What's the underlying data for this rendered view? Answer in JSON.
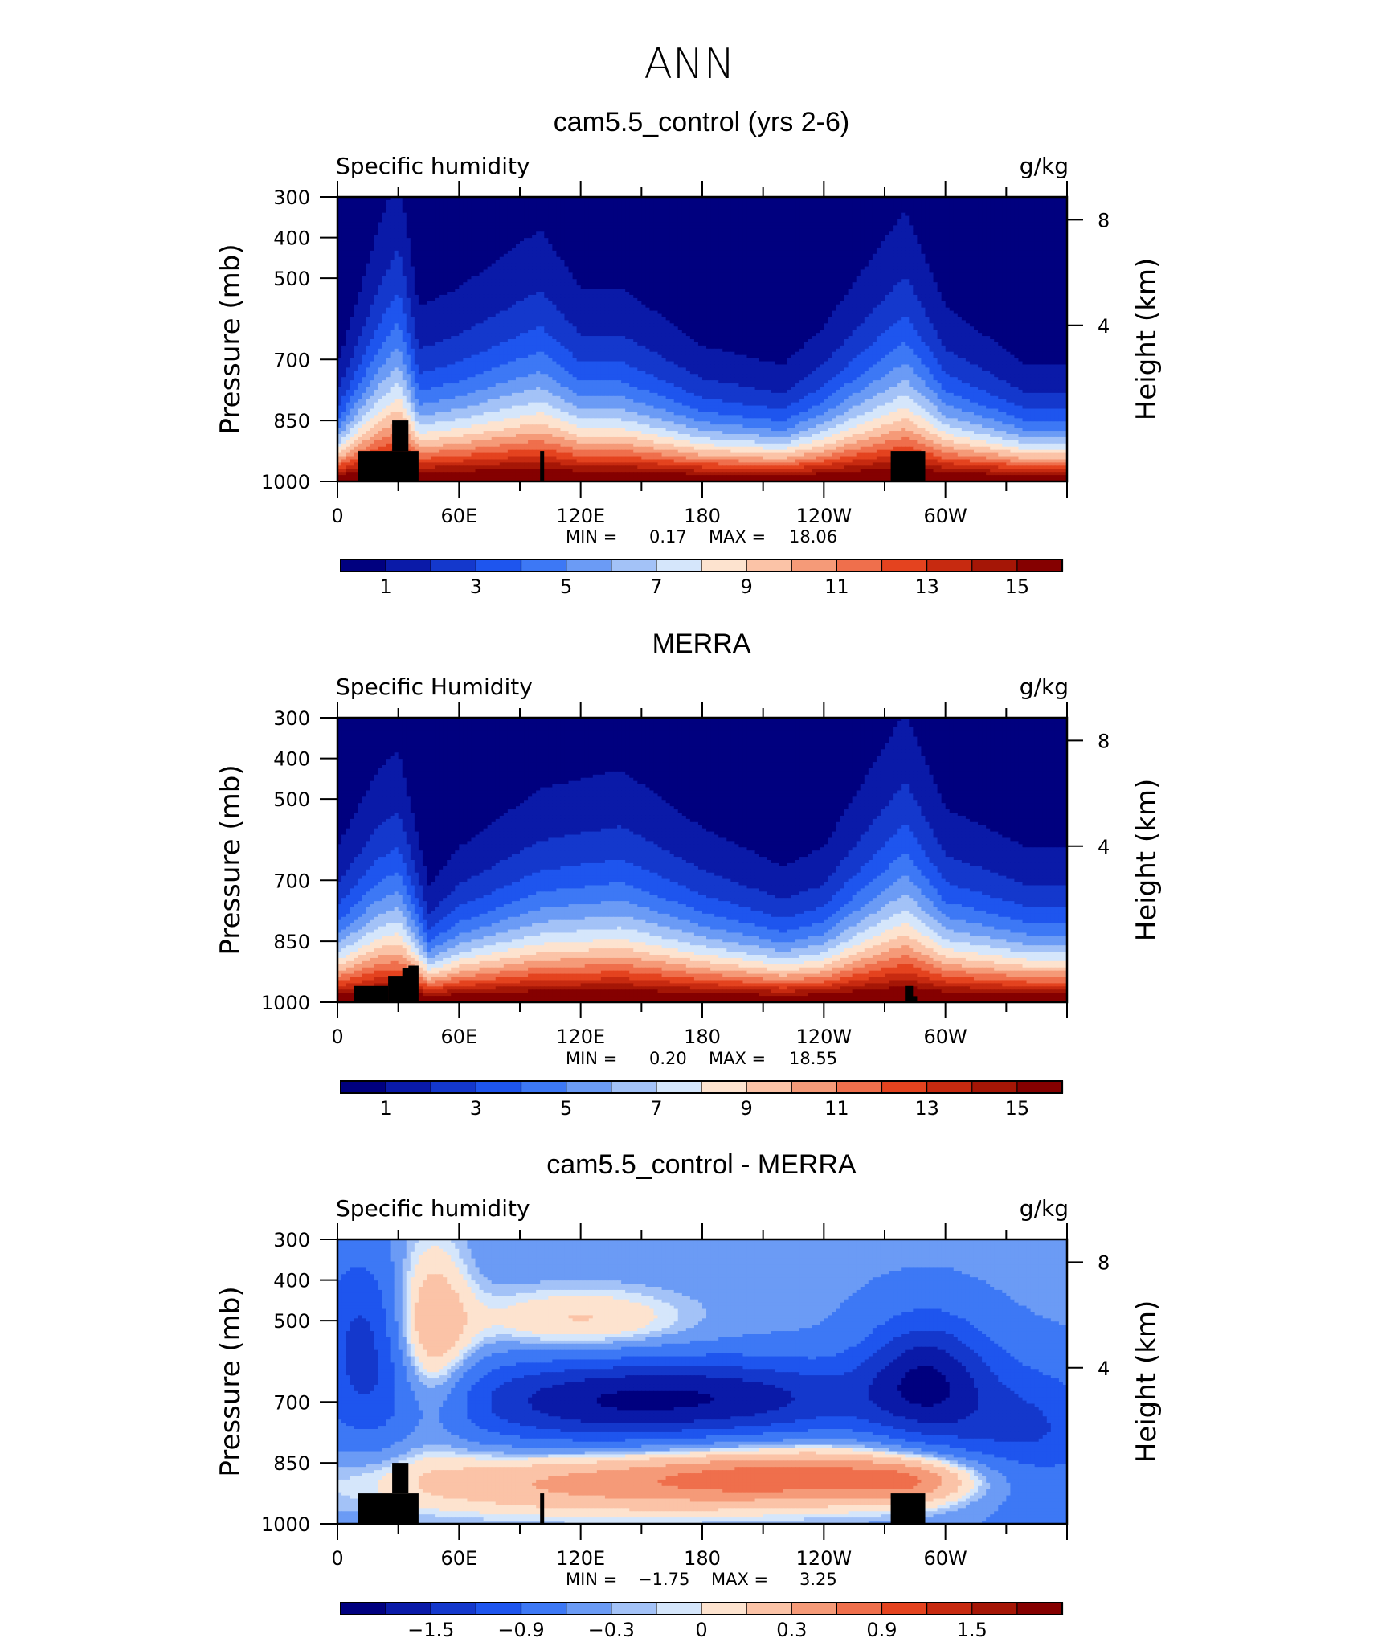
{
  "figure": {
    "title": "ANN",
    "colors": [
      "#00007f",
      "#0a1aa8",
      "#1438cc",
      "#1e55ee",
      "#3d78f5",
      "#6b9bf5",
      "#a3c2f7",
      "#d5e6fb",
      "#fde3cf",
      "#fbc3a7",
      "#f59a78",
      "#ef6f4c",
      "#e4431f",
      "#c72a10",
      "#a51606",
      "#850000"
    ]
  },
  "chart_data": [
    {
      "type": "heatmap",
      "title": "cam5.5_control (yrs 2-6)",
      "left_label": "Specific humidity",
      "right_label": "g/kg",
      "ylabel": "Pressure (mb)",
      "ylabel_right": "Height (km)",
      "yticks": [
        "300",
        "400",
        "500",
        "700",
        "850",
        "1000"
      ],
      "yticks_right": [
        "8",
        "4"
      ],
      "xticks": [
        "0",
        "60E",
        "120E",
        "180",
        "120W",
        "60W"
      ],
      "stats": {
        "min_label": "MIN =",
        "min": "0.17",
        "max_label": "MAX =",
        "max": "18.06"
      },
      "colorbar": {
        "labels": [
          "1",
          "3",
          "5",
          "7",
          "9",
          "11",
          "13",
          "15"
        ]
      },
      "field": {
        "ranges": [
          0,
          18.06
        ],
        "moist_dome": [
          [
            0,
            0.6
          ],
          [
            20,
            1.3
          ],
          [
            30,
            1.6
          ],
          [
            40,
            0.9
          ],
          [
            60,
            1.0
          ],
          [
            100,
            1.3
          ],
          [
            120,
            1.0
          ],
          [
            140,
            1.0
          ],
          [
            180,
            0.7
          ],
          [
            220,
            0.6
          ],
          [
            240,
            0.8
          ],
          [
            280,
            1.4
          ],
          [
            300,
            0.9
          ],
          [
            340,
            0.6
          ],
          [
            360,
            0.6
          ]
        ]
      }
    },
    {
      "type": "heatmap",
      "title": "MERRA",
      "left_label": "Specific Humidity",
      "right_label": "g/kg",
      "ylabel": "Pressure (mb)",
      "ylabel_right": "Height (km)",
      "yticks": [
        "300",
        "400",
        "500",
        "700",
        "850",
        "1000"
      ],
      "yticks_right": [
        "8",
        "4"
      ],
      "xticks": [
        "0",
        "60E",
        "120E",
        "180",
        "120W",
        "60W"
      ],
      "stats": {
        "min_label": "MIN =",
        "min": "0.20",
        "max_label": "MAX =",
        "max": "18.55"
      },
      "colorbar": {
        "labels": [
          "1",
          "3",
          "5",
          "7",
          "9",
          "11",
          "13",
          "15"
        ]
      },
      "field": {
        "ranges": [
          0,
          18.55
        ],
        "moist_dome": [
          [
            0,
            0.8
          ],
          [
            20,
            1.2
          ],
          [
            30,
            1.3
          ],
          [
            45,
            0.6
          ],
          [
            60,
            0.8
          ],
          [
            100,
            1.1
          ],
          [
            140,
            1.2
          ],
          [
            180,
            0.9
          ],
          [
            220,
            0.7
          ],
          [
            240,
            0.8
          ],
          [
            280,
            1.5
          ],
          [
            300,
            1.0
          ],
          [
            340,
            0.8
          ],
          [
            360,
            0.8
          ]
        ]
      }
    },
    {
      "type": "heatmap",
      "title": "cam5.5_control - MERRA",
      "left_label": "Specific humidity",
      "right_label": "g/kg",
      "ylabel": "Pressure (mb)",
      "ylabel_right": "Height (km)",
      "yticks": [
        "300",
        "400",
        "500",
        "700",
        "850",
        "1000"
      ],
      "yticks_right": [
        "8",
        "4"
      ],
      "xticks": [
        "0",
        "60E",
        "120E",
        "180",
        "120W",
        "60W"
      ],
      "stats": {
        "min_label": "MIN =",
        "min": "−1.75",
        "max_label": "MAX =",
        "max": "3.25"
      },
      "colorbar": {
        "labels": [
          "−1.5",
          "−0.9",
          "−0.3",
          "0",
          "0.3",
          "0.9",
          "1.5"
        ]
      },
      "field": {
        "ranges": [
          -1.75,
          3.25
        ]
      }
    }
  ]
}
